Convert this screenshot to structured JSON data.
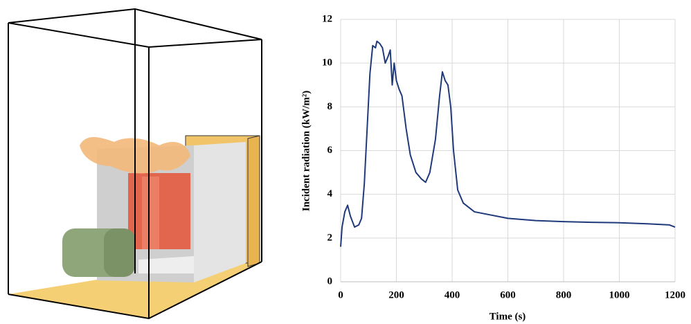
{
  "chart_data": {
    "type": "line",
    "x_label": "Time (s)",
    "y_label": "Incident radiation (kW/m²)",
    "x": [
      0,
      5,
      15,
      25,
      35,
      50,
      65,
      75,
      85,
      95,
      105,
      115,
      125,
      130,
      140,
      150,
      160,
      170,
      178,
      185,
      192,
      200,
      210,
      220,
      235,
      250,
      270,
      290,
      305,
      320,
      340,
      355,
      365,
      375,
      385,
      395,
      405,
      420,
      440,
      480,
      600,
      700,
      800,
      900,
      1000,
      1100,
      1180,
      1200
    ],
    "series": [
      {
        "color": "#1f3a7a",
        "values": [
          1.6,
          2.5,
          3.2,
          3.5,
          3.0,
          2.5,
          2.6,
          2.9,
          4.5,
          7.0,
          9.5,
          10.8,
          10.7,
          11.0,
          10.9,
          10.7,
          10.0,
          10.3,
          10.6,
          9.0,
          10.0,
          9.2,
          8.8,
          8.5,
          7.0,
          5.8,
          5.0,
          4.7,
          4.55,
          5.0,
          6.5,
          8.5,
          9.6,
          9.2,
          9.0,
          8.0,
          6.0,
          4.2,
          3.6,
          3.2,
          2.9,
          2.8,
          2.75,
          2.72,
          2.7,
          2.65,
          2.6,
          2.5
        ]
      }
    ],
    "xlim": [
      0,
      1200
    ],
    "xticks": [
      0,
      200,
      400,
      600,
      800,
      1000,
      1200
    ],
    "ylim": [
      0,
      12
    ],
    "yticks": [
      0,
      2,
      4,
      6,
      8,
      10,
      12
    ],
    "grid": true
  }
}
